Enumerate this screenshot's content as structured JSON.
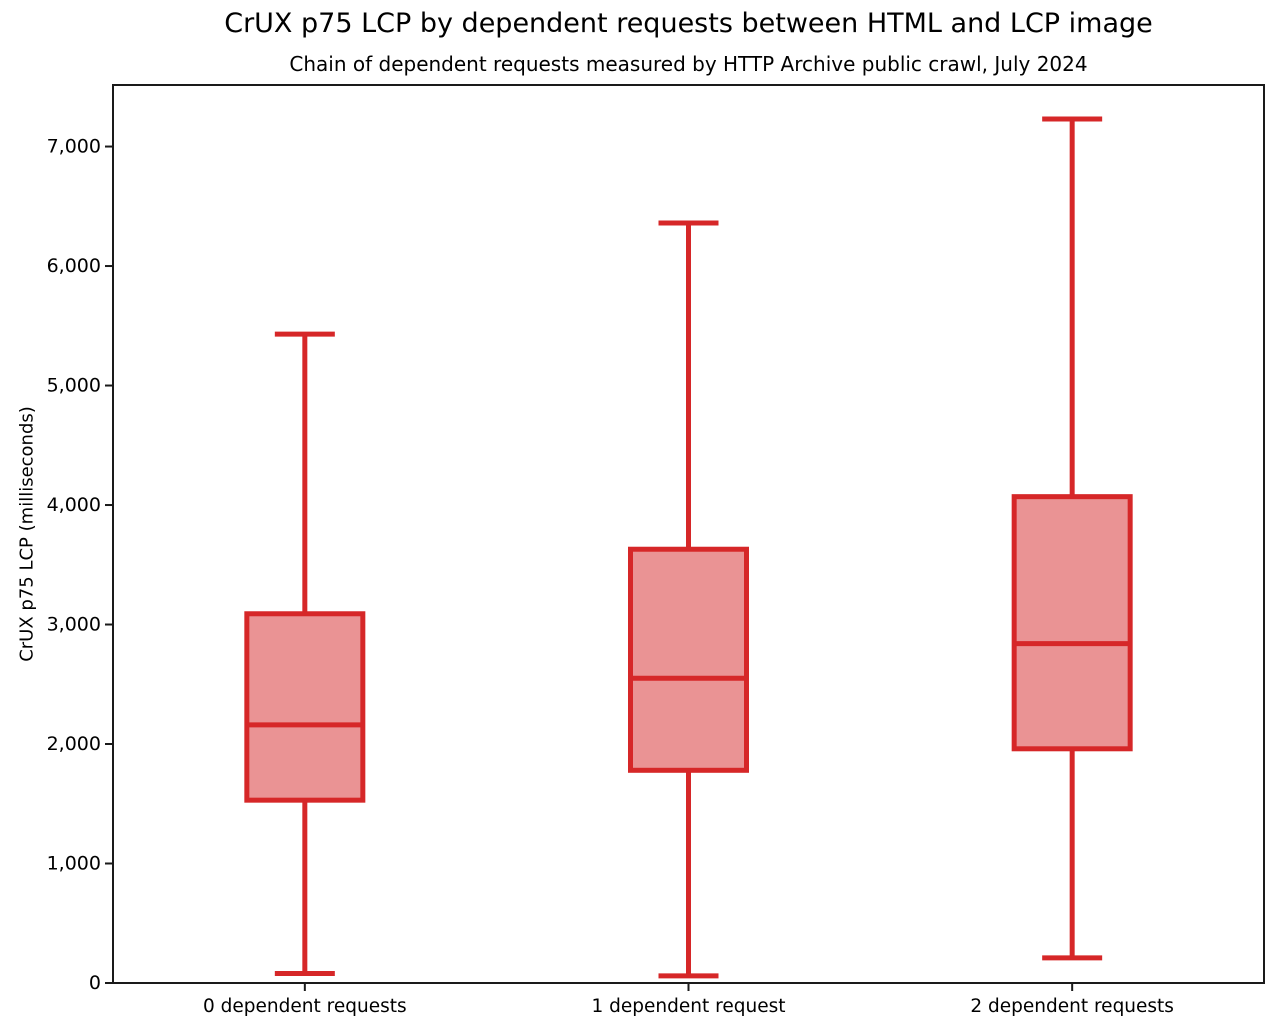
{
  "chart_data": {
    "type": "boxplot",
    "title": "CrUX p75 LCP by dependent requests between HTML and LCP image",
    "subtitle": "Chain of dependent requests measured by HTTP Archive public crawl, July 2024",
    "ylabel": "CrUX p75 LCP (milliseconds)",
    "xlabel": "",
    "categories": [
      "0 dependent requests",
      "1 dependent request",
      "2 dependent requests"
    ],
    "series": [
      {
        "name": "0 dependent requests",
        "whisker_low": 80,
        "q1": 1530,
        "median": 2160,
        "q3": 3090,
        "whisker_high": 5430
      },
      {
        "name": "1 dependent request",
        "whisker_low": 60,
        "q1": 1780,
        "median": 2550,
        "q3": 3630,
        "whisker_high": 6360
      },
      {
        "name": "2 dependent requests",
        "whisker_low": 210,
        "q1": 1960,
        "median": 2840,
        "q3": 4070,
        "whisker_high": 7230
      }
    ],
    "ylim": [
      0,
      7515
    ],
    "yticks": [
      0,
      1000,
      2000,
      3000,
      4000,
      5000,
      6000,
      7000
    ],
    "ytick_labels": [
      "0",
      "1,000",
      "2,000",
      "3,000",
      "4,000",
      "5,000",
      "6,000",
      "7,000"
    ],
    "grid": false,
    "legend": "none",
    "colors": {
      "box_line": "#d62728",
      "box_fill": "#ea9394",
      "axis": "#1a1a1a",
      "text": "#000000"
    }
  }
}
